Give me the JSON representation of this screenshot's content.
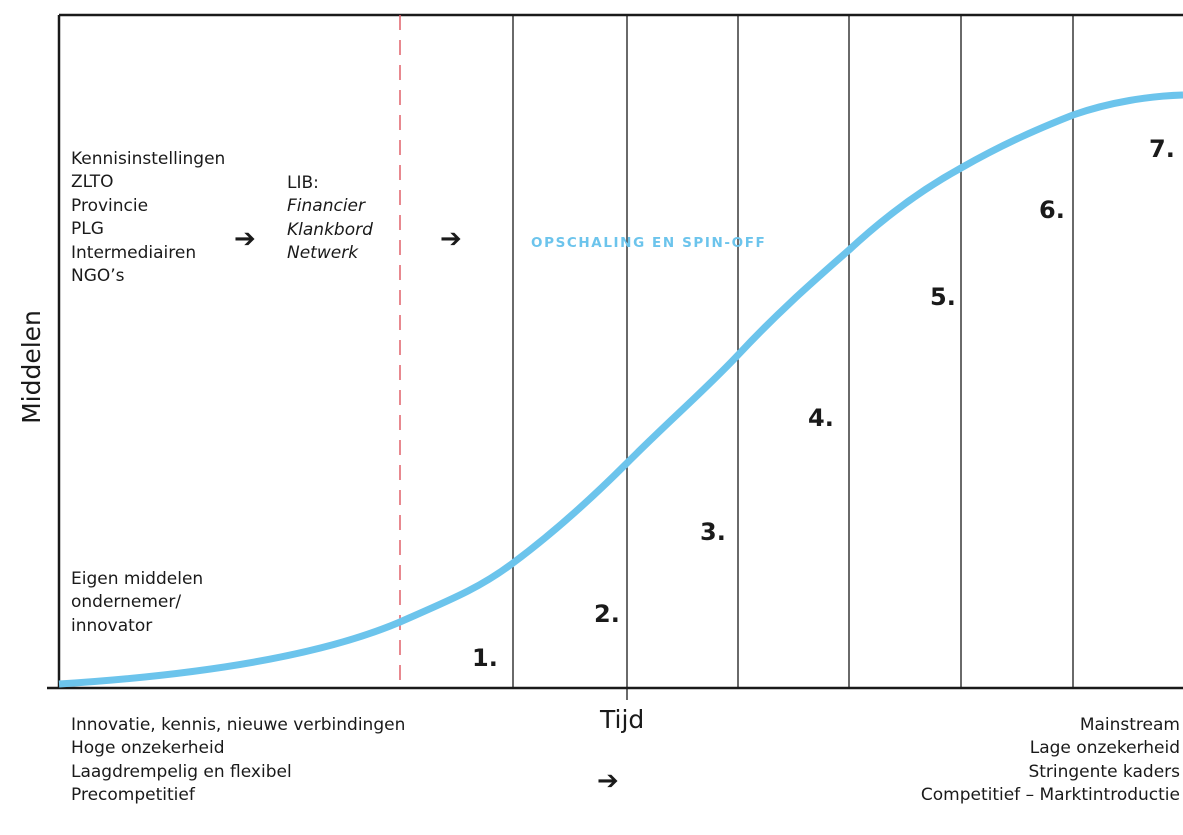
{
  "axes": {
    "y_label": "Middelen",
    "x_label": "Tijd"
  },
  "curve": {
    "label": "OPSCHALING EN SPIN-OFF",
    "color": "#6cc4ec"
  },
  "colors": {
    "frame": "#1a1a1a",
    "dashed_divider": "#e0606a"
  },
  "stakeholders": [
    "Kennisinstellingen",
    "ZLTO",
    "Provincie",
    "PLG",
    "Intermediairen",
    "NGO’s"
  ],
  "lib": {
    "title": "LIB:",
    "roles": [
      "Financier",
      "Klankbord",
      "Netwerk"
    ]
  },
  "own_funds": [
    "Eigen middelen",
    "ondernemer/",
    "innovator"
  ],
  "steps": [
    "1.",
    "2.",
    "3.",
    "4.",
    "5.",
    "6.",
    "7."
  ],
  "arrow_glyph": "➔",
  "bottom_left": [
    "Innovatie, kennis, nieuwe verbindingen",
    "Hoge onzekerheid",
    "Laagdrempelig en flexibel",
    "Precompetitief"
  ],
  "bottom_right": [
    "Mainstream",
    "Lage onzekerheid",
    "Stringente kaders",
    "Competitief – Marktintroductie"
  ]
}
